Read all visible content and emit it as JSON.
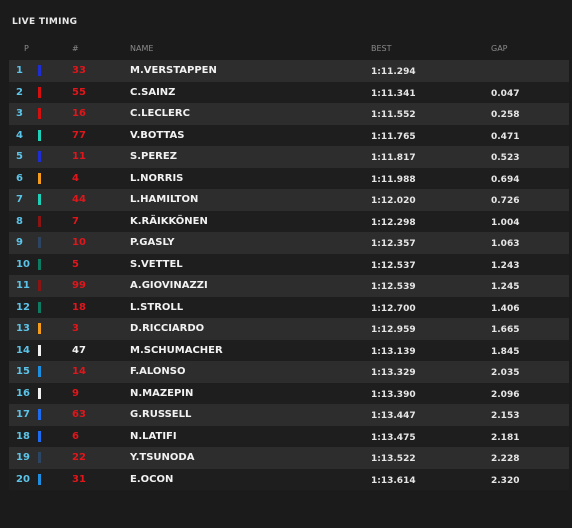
{
  "title": "LIVE TIMING",
  "headers": {
    "p": "P",
    "num": "#",
    "name": "NAME",
    "best": "BEST",
    "gap": "GAP"
  },
  "rows": [
    {
      "pos": "1",
      "num": "33",
      "name": "M.VERSTAPPEN",
      "best": "1:11.294",
      "gap": "",
      "team_color": "#1e2ed1",
      "num_color": "#e0161b"
    },
    {
      "pos": "2",
      "num": "55",
      "name": "C.SAINZ",
      "best": "1:11.341",
      "gap": "0.047",
      "team_color": "#d40f10",
      "num_color": "#e0161b"
    },
    {
      "pos": "3",
      "num": "16",
      "name": "C.LECLERC",
      "best": "1:11.552",
      "gap": "0.258",
      "team_color": "#d40f10",
      "num_color": "#e0161b"
    },
    {
      "pos": "4",
      "num": "77",
      "name": "V.BOTTAS",
      "best": "1:11.765",
      "gap": "0.471",
      "team_color": "#1fd0b8",
      "num_color": "#e0161b"
    },
    {
      "pos": "5",
      "num": "11",
      "name": "S.PEREZ",
      "best": "1:11.817",
      "gap": "0.523",
      "team_color": "#1e2ed1",
      "num_color": "#e0161b"
    },
    {
      "pos": "6",
      "num": "4",
      "name": "L.NORRIS",
      "best": "1:11.988",
      "gap": "0.694",
      "team_color": "#f39c1d",
      "num_color": "#e0161b"
    },
    {
      "pos": "7",
      "num": "44",
      "name": "L.HAMILTON",
      "best": "1:12.020",
      "gap": "0.726",
      "team_color": "#1fd0b8",
      "num_color": "#e0161b"
    },
    {
      "pos": "8",
      "num": "7",
      "name": "K.RÄIKKÖNEN",
      "best": "1:12.298",
      "gap": "1.004",
      "team_color": "#8a1414",
      "num_color": "#e0161b"
    },
    {
      "pos": "9",
      "num": "10",
      "name": "P.GASLY",
      "best": "1:12.357",
      "gap": "1.063",
      "team_color": "#2b4562",
      "num_color": "#e0161b"
    },
    {
      "pos": "10",
      "num": "5",
      "name": "S.VETTEL",
      "best": "1:12.537",
      "gap": "1.243",
      "team_color": "#0e7a62",
      "num_color": "#e0161b"
    },
    {
      "pos": "11",
      "num": "99",
      "name": "A.GIOVINAZZI",
      "best": "1:12.539",
      "gap": "1.245",
      "team_color": "#8a1414",
      "num_color": "#e0161b"
    },
    {
      "pos": "12",
      "num": "18",
      "name": "L.STROLL",
      "best": "1:12.700",
      "gap": "1.406",
      "team_color": "#0e7a62",
      "num_color": "#e0161b"
    },
    {
      "pos": "13",
      "num": "3",
      "name": "D.RICCIARDO",
      "best": "1:12.959",
      "gap": "1.665",
      "team_color": "#f39c1d",
      "num_color": "#e0161b"
    },
    {
      "pos": "14",
      "num": "47",
      "name": "M.SCHUMACHER",
      "best": "1:13.139",
      "gap": "1.845",
      "team_color": "#f2f2f2",
      "num_color": "#f2f2f2"
    },
    {
      "pos": "15",
      "num": "14",
      "name": "F.ALONSO",
      "best": "1:13.329",
      "gap": "2.035",
      "team_color": "#1e8fe0",
      "num_color": "#e0161b"
    },
    {
      "pos": "16",
      "num": "9",
      "name": "N.MAZEPIN",
      "best": "1:13.390",
      "gap": "2.096",
      "team_color": "#f2f2f2",
      "num_color": "#e0161b"
    },
    {
      "pos": "17",
      "num": "63",
      "name": "G.RUSSELL",
      "best": "1:13.447",
      "gap": "2.153",
      "team_color": "#1e6bef",
      "num_color": "#e0161b"
    },
    {
      "pos": "18",
      "num": "6",
      "name": "N.LATIFI",
      "best": "1:13.475",
      "gap": "2.181",
      "team_color": "#1e6bef",
      "num_color": "#e0161b"
    },
    {
      "pos": "19",
      "num": "22",
      "name": "Y.TSUNODA",
      "best": "1:13.522",
      "gap": "2.228",
      "team_color": "#2b4562",
      "num_color": "#e0161b"
    },
    {
      "pos": "20",
      "num": "31",
      "name": "E.OCON",
      "best": "1:13.614",
      "gap": "2.320",
      "team_color": "#1e8fe0",
      "num_color": "#e0161b"
    }
  ]
}
